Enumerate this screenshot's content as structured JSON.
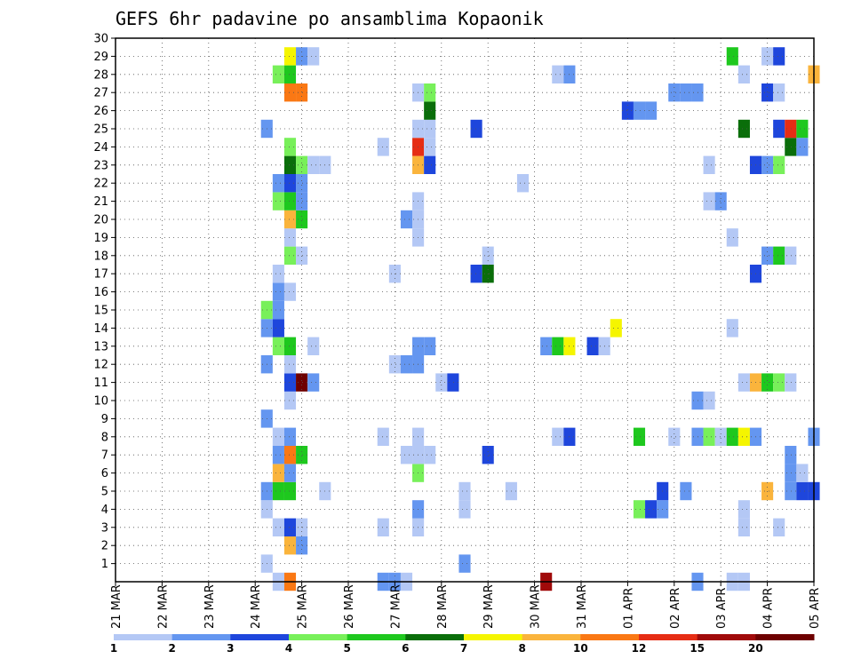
{
  "chart_data": {
    "type": "heatmap",
    "title": "GEFS 6hr padavine po ansamblima Kopaonik",
    "xlabel": "",
    "ylabel": "",
    "x_ticks": [
      "21 MAR",
      "22 MAR",
      "23 MAR",
      "24 MAR",
      "25 MAR",
      "26 MAR",
      "27 MAR",
      "28 MAR",
      "29 MAR",
      "30 MAR",
      "31 MAR",
      "01 APR",
      "02 APR",
      "03 APR",
      "04 APR",
      "05 APR"
    ],
    "y_ticks": [
      1,
      2,
      3,
      4,
      5,
      6,
      7,
      8,
      9,
      10,
      11,
      12,
      13,
      14,
      15,
      16,
      17,
      18,
      19,
      20,
      21,
      22,
      23,
      24,
      25,
      26,
      27,
      28,
      29,
      30
    ],
    "xlim": [
      0,
      60
    ],
    "ylim": [
      0,
      30
    ],
    "x_unit": "6-hour steps from 21 MAR 00Z",
    "grid": true,
    "legend": {
      "placement": "bottom",
      "labels": [
        "1",
        "2",
        "3",
        "4",
        "5",
        "6",
        "7",
        "8",
        "10",
        "12",
        "15",
        "20"
      ],
      "colors": [
        "#b4c8f5",
        "#6496f0",
        "#1e46dc",
        "#78f05a",
        "#1ec81e",
        "#0a6e0a",
        "#f5f500",
        "#fab43c",
        "#fa7814",
        "#e62d14",
        "#a00a0a",
        "#6e0000"
      ]
    },
    "color_thresholds": [
      1,
      2,
      3,
      4,
      5,
      6,
      7,
      8,
      10,
      12,
      15,
      20
    ],
    "cells": [
      [
        14,
        0,
        1.5
      ],
      [
        15,
        0,
        10
      ],
      [
        23,
        0,
        2
      ],
      [
        24,
        0,
        2
      ],
      [
        25,
        0,
        1.5
      ],
      [
        37,
        0,
        18
      ],
      [
        50,
        0,
        2
      ],
      [
        53,
        0,
        1.5
      ],
      [
        54,
        0,
        1.5
      ],
      [
        13,
        1,
        1.5
      ],
      [
        30,
        1,
        2
      ],
      [
        15,
        2,
        9
      ],
      [
        16,
        2,
        2
      ],
      [
        14,
        3,
        1.5
      ],
      [
        15,
        3,
        3
      ],
      [
        16,
        3,
        1.5
      ],
      [
        23,
        3,
        1.5
      ],
      [
        26,
        3,
        1.5
      ],
      [
        54,
        3,
        1.5
      ],
      [
        57,
        3,
        1.5
      ],
      [
        13,
        4,
        1.5
      ],
      [
        26,
        4,
        2
      ],
      [
        30,
        4,
        1.5
      ],
      [
        45,
        4,
        4
      ],
      [
        46,
        4,
        3
      ],
      [
        47,
        4,
        2
      ],
      [
        54,
        4,
        1.5
      ],
      [
        13,
        5,
        2
      ],
      [
        14,
        5,
        5
      ],
      [
        15,
        5,
        5
      ],
      [
        18,
        5,
        1.5
      ],
      [
        30,
        5,
        1.5
      ],
      [
        34,
        5,
        1.5
      ],
      [
        47,
        5,
        3
      ],
      [
        49,
        5,
        2
      ],
      [
        56,
        5,
        9
      ],
      [
        58,
        5,
        2
      ],
      [
        59,
        5,
        3
      ],
      [
        60,
        5,
        3
      ],
      [
        14,
        6,
        9
      ],
      [
        15,
        6,
        2
      ],
      [
        26,
        6,
        4
      ],
      [
        58,
        6,
        2
      ],
      [
        59,
        6,
        1.5
      ],
      [
        14,
        7,
        2
      ],
      [
        15,
        7,
        10
      ],
      [
        16,
        7,
        5
      ],
      [
        25,
        7,
        1.5
      ],
      [
        26,
        7,
        1.5
      ],
      [
        27,
        7,
        1.5
      ],
      [
        32,
        7,
        3
      ],
      [
        58,
        7,
        2
      ],
      [
        14,
        8,
        1.5
      ],
      [
        15,
        8,
        2
      ],
      [
        23,
        8,
        1.5
      ],
      [
        26,
        8,
        1.5
      ],
      [
        38,
        8,
        1.5
      ],
      [
        39,
        8,
        3
      ],
      [
        45,
        8,
        5
      ],
      [
        48,
        8,
        1.5
      ],
      [
        50,
        8,
        2
      ],
      [
        51,
        8,
        4
      ],
      [
        52,
        8,
        1.5
      ],
      [
        53,
        8,
        5
      ],
      [
        54,
        8,
        7
      ],
      [
        55,
        8,
        2
      ],
      [
        60,
        8,
        2
      ],
      [
        13,
        9,
        2
      ],
      [
        15,
        10,
        1.5
      ],
      [
        50,
        10,
        2
      ],
      [
        51,
        10,
        1.5
      ],
      [
        15,
        11,
        3
      ],
      [
        16,
        11,
        20
      ],
      [
        17,
        11,
        2
      ],
      [
        28,
        11,
        1.5
      ],
      [
        29,
        11,
        3
      ],
      [
        54,
        11,
        1.5
      ],
      [
        55,
        11,
        9
      ],
      [
        56,
        11,
        5
      ],
      [
        57,
        11,
        4
      ],
      [
        58,
        11,
        1.5
      ],
      [
        13,
        12,
        2
      ],
      [
        15,
        12,
        1.5
      ],
      [
        24,
        12,
        1.5
      ],
      [
        25,
        12,
        2
      ],
      [
        26,
        12,
        2
      ],
      [
        14,
        13,
        4
      ],
      [
        15,
        13,
        5
      ],
      [
        17,
        13,
        1.5
      ],
      [
        26,
        13,
        2
      ],
      [
        27,
        13,
        2
      ],
      [
        37,
        13,
        2
      ],
      [
        38,
        13,
        5
      ],
      [
        39,
        13,
        7
      ],
      [
        41,
        13,
        3
      ],
      [
        42,
        13,
        1.5
      ],
      [
        13,
        14,
        2
      ],
      [
        14,
        14,
        3
      ],
      [
        43,
        14,
        7
      ],
      [
        53,
        14,
        1.5
      ],
      [
        13,
        15,
        4
      ],
      [
        14,
        15,
        2
      ],
      [
        14,
        16,
        2
      ],
      [
        15,
        16,
        1.5
      ],
      [
        14,
        17,
        1.5
      ],
      [
        24,
        17,
        1.5
      ],
      [
        31,
        17,
        3
      ],
      [
        32,
        17,
        6
      ],
      [
        55,
        17,
        3
      ],
      [
        15,
        18,
        4
      ],
      [
        16,
        18,
        1.5
      ],
      [
        32,
        18,
        1.5
      ],
      [
        56,
        18,
        2
      ],
      [
        57,
        18,
        5
      ],
      [
        58,
        18,
        1.5
      ],
      [
        15,
        19,
        1.5
      ],
      [
        26,
        19,
        1.5
      ],
      [
        53,
        19,
        1.5
      ],
      [
        15,
        20,
        9
      ],
      [
        16,
        20,
        5
      ],
      [
        25,
        20,
        2
      ],
      [
        26,
        20,
        1.5
      ],
      [
        14,
        21,
        4
      ],
      [
        15,
        21,
        5
      ],
      [
        16,
        21,
        2
      ],
      [
        26,
        21,
        1.5
      ],
      [
        51,
        21,
        1.5
      ],
      [
        52,
        21,
        2
      ],
      [
        14,
        22,
        2
      ],
      [
        15,
        22,
        3
      ],
      [
        16,
        22,
        2
      ],
      [
        35,
        22,
        1.5
      ],
      [
        15,
        23,
        6
      ],
      [
        16,
        23,
        4
      ],
      [
        17,
        23,
        1.5
      ],
      [
        18,
        23,
        1.5
      ],
      [
        26,
        23,
        9
      ],
      [
        27,
        23,
        3
      ],
      [
        51,
        23,
        1.5
      ],
      [
        55,
        23,
        3
      ],
      [
        56,
        23,
        2
      ],
      [
        57,
        23,
        4
      ],
      [
        15,
        24,
        4
      ],
      [
        23,
        24,
        1.5
      ],
      [
        26,
        24,
        13
      ],
      [
        27,
        24,
        1.5
      ],
      [
        58,
        24,
        6
      ],
      [
        59,
        24,
        2
      ],
      [
        13,
        25,
        2
      ],
      [
        26,
        25,
        1.5
      ],
      [
        27,
        25,
        1.5
      ],
      [
        31,
        25,
        3
      ],
      [
        54,
        25,
        6
      ],
      [
        57,
        25,
        3
      ],
      [
        58,
        25,
        13
      ],
      [
        59,
        25,
        5
      ],
      [
        27,
        26,
        6
      ],
      [
        44,
        26,
        3
      ],
      [
        45,
        26,
        2
      ],
      [
        46,
        26,
        2
      ],
      [
        15,
        27,
        11
      ],
      [
        16,
        27,
        11
      ],
      [
        26,
        27,
        1.5
      ],
      [
        27,
        27,
        4
      ],
      [
        48,
        27,
        2
      ],
      [
        49,
        27,
        2
      ],
      [
        50,
        27,
        2
      ],
      [
        56,
        27,
        3
      ],
      [
        57,
        27,
        1.5
      ],
      [
        14,
        28,
        4
      ],
      [
        15,
        28,
        5
      ],
      [
        38,
        28,
        1.5
      ],
      [
        39,
        28,
        2
      ],
      [
        54,
        28,
        1.5
      ],
      [
        60,
        28,
        9
      ],
      [
        15,
        29,
        7
      ],
      [
        16,
        29,
        2
      ],
      [
        17,
        29,
        1.5
      ],
      [
        53,
        29,
        5
      ],
      [
        56,
        29,
        1.5
      ],
      [
        57,
        29,
        3
      ]
    ]
  }
}
